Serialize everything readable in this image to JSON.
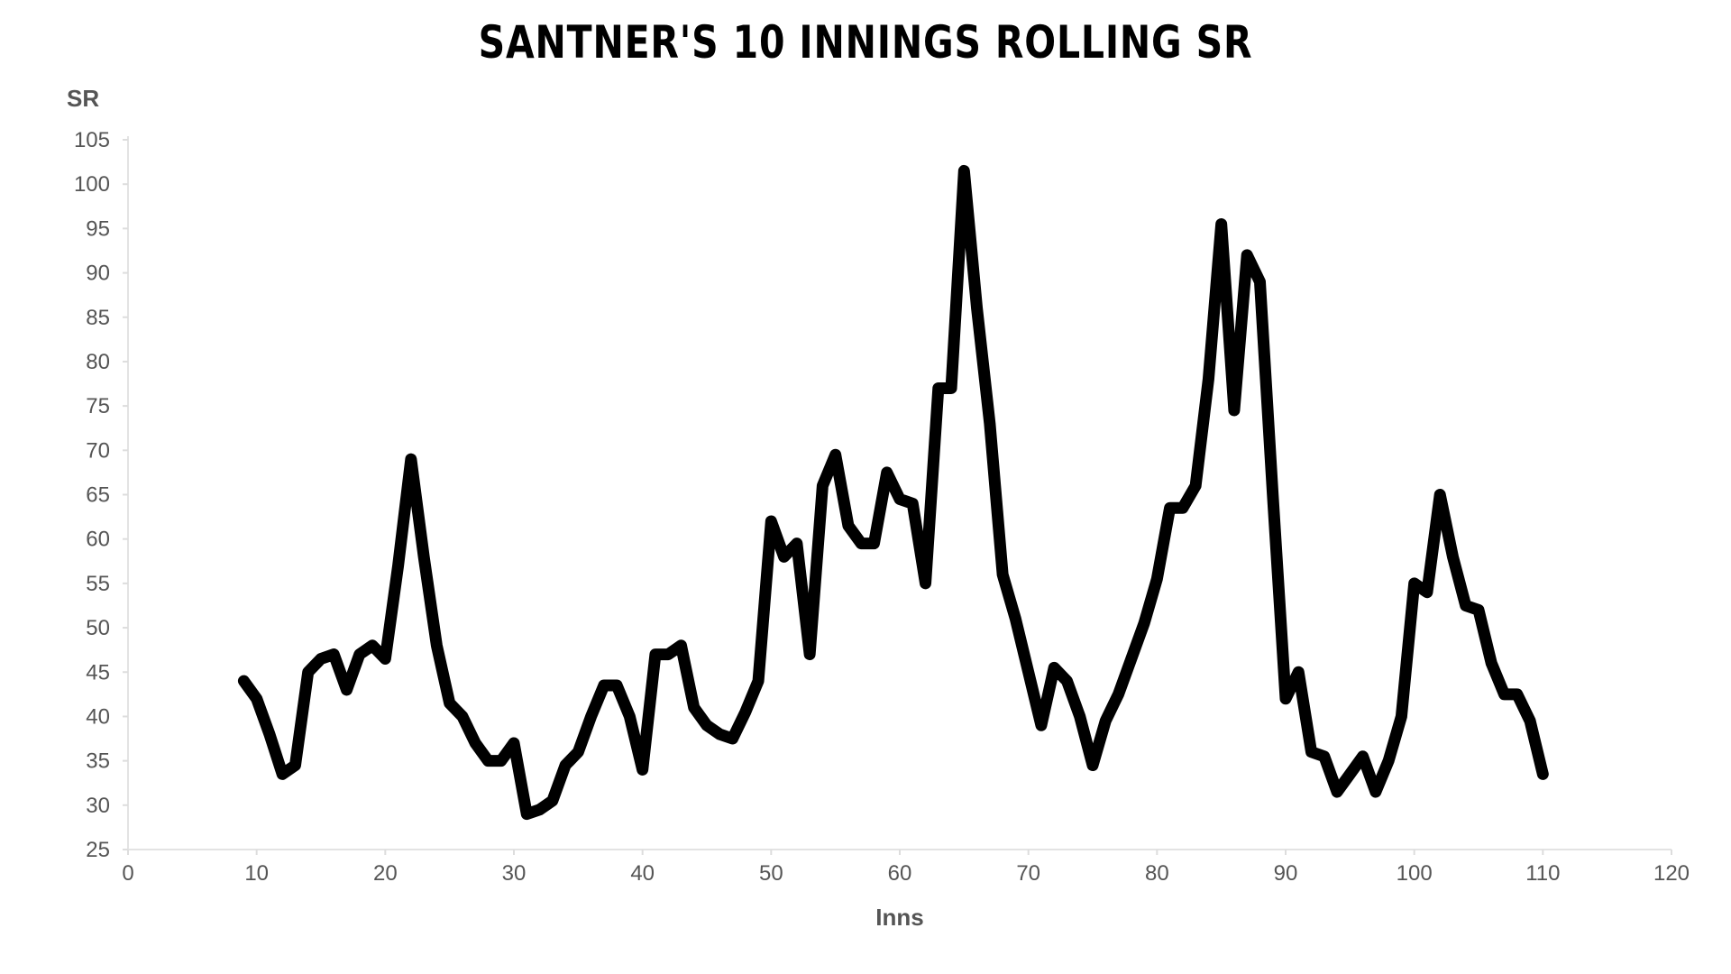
{
  "chart_data": {
    "type": "line",
    "title": "SANTNER'S 10 INNINGS ROLLING SR",
    "xlabel": "Inns",
    "ylabel": "SR",
    "xlim": [
      0,
      120
    ],
    "ylim": [
      25,
      105
    ],
    "xticks": [
      0,
      10,
      20,
      30,
      40,
      50,
      60,
      70,
      80,
      90,
      100,
      110,
      120
    ],
    "yticks": [
      25,
      30,
      35,
      40,
      45,
      50,
      55,
      60,
      65,
      70,
      75,
      80,
      85,
      90,
      95,
      100,
      105
    ],
    "grid": false,
    "line_color": "#000000",
    "series": [
      {
        "x": [
          9,
          10,
          11,
          12,
          13,
          14,
          15,
          16,
          17,
          18,
          19,
          20,
          21,
          22,
          23,
          24,
          25,
          26,
          27,
          28,
          29,
          30,
          31,
          32,
          33,
          34,
          35,
          36,
          37,
          38,
          39,
          40,
          41,
          42,
          43,
          44,
          45,
          46,
          47,
          48,
          49,
          50,
          51,
          52,
          53,
          54,
          55,
          56,
          57,
          58,
          59,
          60,
          61,
          62,
          63,
          64,
          65,
          66,
          67,
          68,
          69,
          70,
          71,
          72,
          73,
          74,
          75,
          76,
          77,
          78,
          79,
          80,
          81,
          82,
          83,
          84,
          85,
          86,
          87,
          88,
          89,
          90,
          91,
          92,
          93,
          94,
          95,
          96,
          97,
          98,
          99,
          100,
          101,
          102,
          103,
          104,
          105,
          106,
          107,
          108,
          109,
          110
        ],
        "y": [
          44,
          42,
          38,
          33.5,
          34.5,
          45,
          46.5,
          47,
          43,
          47,
          48,
          46.5,
          57,
          69,
          58,
          48,
          41.5,
          40,
          37,
          35,
          35,
          37,
          29,
          29.5,
          30.5,
          34.5,
          36,
          40,
          43.5,
          43.5,
          40,
          34,
          47,
          47,
          48,
          41,
          39,
          38,
          37.5,
          40.5,
          44,
          62,
          58,
          59.5,
          47,
          66,
          69.5,
          61.5,
          59.5,
          59.5,
          67.5,
          64.5,
          64,
          55,
          77,
          77,
          101.5,
          86,
          73,
          56,
          51,
          45,
          39,
          45.5,
          44,
          40,
          34.5,
          39.5,
          42.5,
          46.5,
          50.5,
          55.5,
          63.5,
          63.5,
          66,
          78,
          95.5,
          74.5,
          92,
          89,
          65,
          42,
          45,
          36,
          35.5,
          31.5,
          33.5,
          35.5,
          31.5,
          35,
          40,
          55,
          54,
          65,
          58,
          52.5,
          52,
          46,
          42.5,
          42.5,
          39.5,
          33.5
        ]
      }
    ]
  }
}
